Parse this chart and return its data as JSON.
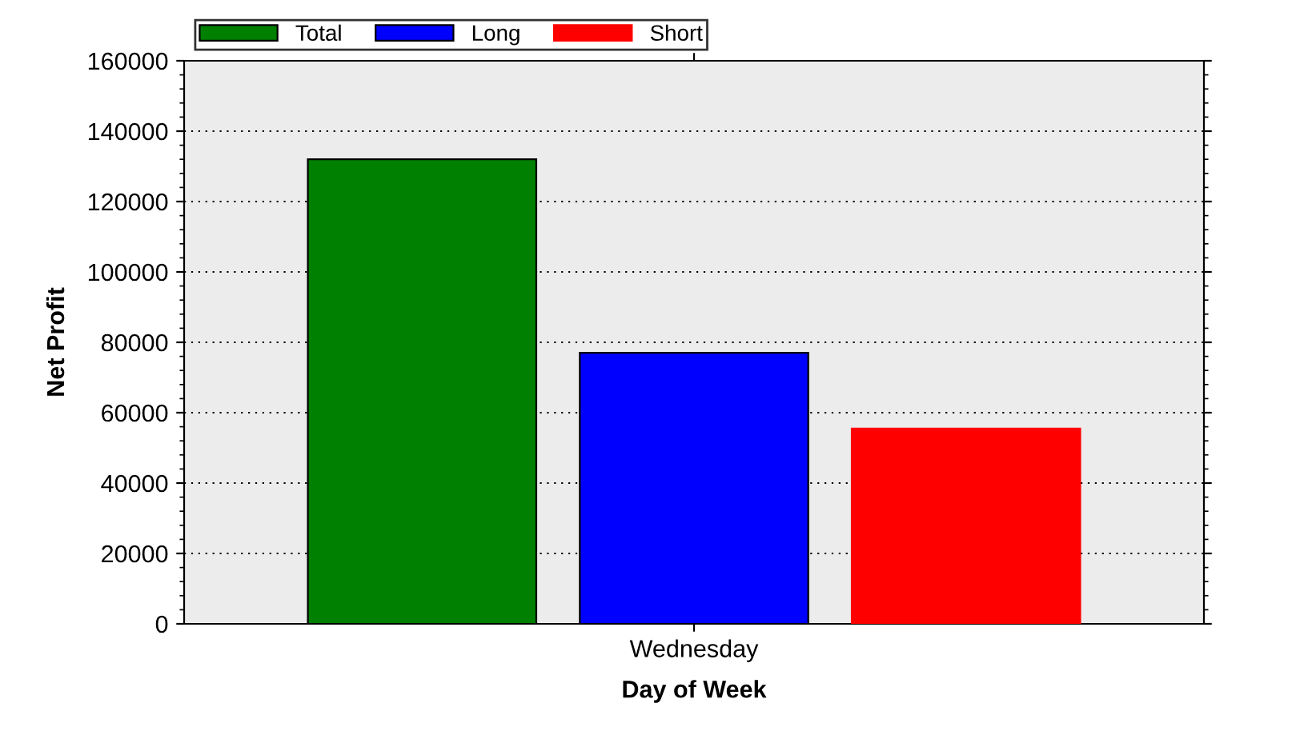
{
  "chart_data": {
    "type": "bar",
    "xlabel": "Day of Week",
    "ylabel": "Net Profit",
    "categories": [
      "Wednesday"
    ],
    "series": [
      {
        "name": "Total",
        "color": "#008000",
        "values": [
          132000
        ]
      },
      {
        "name": "Long",
        "color": "#0000ff",
        "values": [
          77000
        ]
      },
      {
        "name": "Short",
        "color": "#ff0000",
        "values": [
          55500
        ]
      }
    ],
    "ylim": [
      0,
      160000
    ],
    "yticks": [
      0,
      20000,
      40000,
      60000,
      80000,
      100000,
      120000,
      140000,
      160000
    ],
    "grid": "y",
    "legend": "top left"
  }
}
